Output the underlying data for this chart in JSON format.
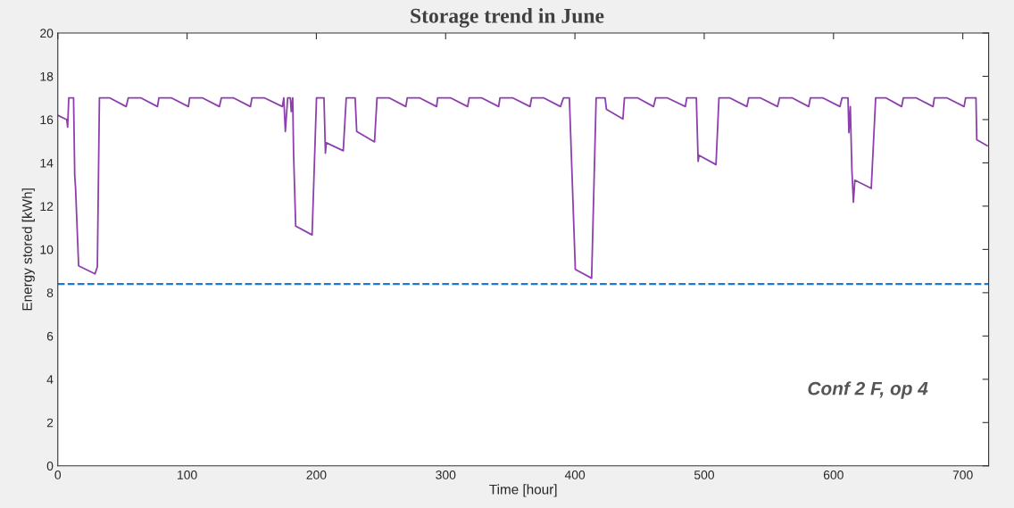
{
  "chart_data": {
    "type": "line",
    "title": "Storage trend in June",
    "xlabel": "Time [hour]",
    "ylabel": "Energy stored [kWh]",
    "xlim": [
      0,
      720
    ],
    "xticks": [
      0,
      100,
      200,
      300,
      400,
      500,
      600,
      700
    ],
    "ylim": [
      0,
      20
    ],
    "yticks": [
      0,
      2,
      4,
      6,
      8,
      10,
      12,
      14,
      16,
      18,
      20
    ],
    "grid": false,
    "legend": false,
    "marker": "none",
    "line_style": "solid",
    "series": [
      {
        "color": "#8e3fae",
        "x": [
          0,
          6.9,
          7.6,
          8.5,
          12.2,
          13.1,
          13.7,
          16.1,
          28.8,
          30.6,
          32.2,
          40.3,
          52.9,
          54.5,
          64.4,
          77.1,
          78.2,
          88,
          101,
          102,
          112,
          125,
          126.5,
          136,
          149,
          150.2,
          160,
          173.7,
          174.8,
          176,
          177.8,
          179.9,
          180.6,
          181.7,
          182.4,
          184,
          196.7,
          200.1,
          205.9,
          207,
          207.7,
          220.8,
          223.1,
          230,
          231.2,
          245,
          246.9,
          256.5,
          269.2,
          270.3,
          280,
          293,
          293.8,
          304,
          317,
          318.2,
          328,
          341,
          342,
          352,
          365.3,
          366.5,
          376,
          388.8,
          391.1,
          395.7,
          400.3,
          412.9,
          416.4,
          423.3,
          424.4,
          437.1,
          438.3,
          448.6,
          460.8,
          462.4,
          471.6,
          485.4,
          486.5,
          493.9,
          495.3,
          496,
          509.1,
          511.4,
          519.9,
          533,
          534.4,
          543.6,
          556.7,
          558.3,
          568.2,
          580.8,
          582.1,
          591.9,
          605,
          606.6,
          611.2,
          611.9,
          613,
          614.2,
          615.4,
          616.5,
          629.2,
          632.6,
          640.7,
          652.7,
          654,
          664.1,
          677,
          678,
          687.9,
          701,
          702.2,
          710.2,
          710.8,
          718.9
        ],
        "values": [
          16.2,
          16.0,
          15.65,
          17,
          17,
          13.4,
          12.9,
          9.24,
          8.87,
          9.2,
          17,
          17,
          16.6,
          17,
          17,
          16.6,
          17,
          17,
          16.6,
          17,
          17,
          16.6,
          17,
          17,
          16.6,
          17,
          17,
          16.6,
          17,
          15.45,
          17,
          17,
          16.37,
          17,
          14.4,
          11.08,
          10.67,
          17,
          17,
          14.45,
          14.93,
          14.56,
          17,
          17,
          15.45,
          14.97,
          17,
          17,
          16.6,
          17,
          17,
          16.6,
          17,
          17,
          16.6,
          17,
          17,
          16.6,
          17,
          17,
          16.6,
          17,
          17,
          16.6,
          17,
          17,
          9.08,
          8.67,
          17,
          17,
          16.47,
          16.03,
          17,
          17,
          16.6,
          17,
          17,
          16.6,
          17,
          17,
          14.07,
          14.35,
          13.92,
          17,
          17,
          16.6,
          17,
          17,
          16.6,
          17,
          17,
          16.6,
          17,
          17,
          16.6,
          17,
          17,
          15.4,
          16.6,
          13.7,
          12.18,
          13.2,
          12.82,
          17,
          17,
          16.6,
          17,
          17,
          16.6,
          17,
          17,
          16.6,
          17,
          17,
          15.07,
          14.79
        ]
      }
    ],
    "ref_lines": [
      {
        "axis": "y",
        "value": 8.4,
        "color": "#1a7ad6",
        "line_style": "dashed"
      }
    ],
    "annotations": [
      "Conf 2 F, op 4"
    ]
  }
}
